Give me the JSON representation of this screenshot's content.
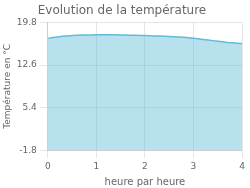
{
  "chart_data": {
    "type": "area",
    "title": "Evolution de la température",
    "xlabel": "heure par heure",
    "ylabel": "Température en °C",
    "x": [
      0.0,
      0.1,
      0.2,
      0.3,
      0.4,
      0.5,
      0.6,
      0.7,
      0.8,
      0.9,
      1.0,
      1.1,
      1.2,
      1.3,
      1.4,
      1.5,
      1.6,
      1.7,
      1.8,
      1.9,
      2.0,
      2.1,
      2.2,
      2.3,
      2.4,
      2.5,
      2.6,
      2.7,
      2.8,
      2.9,
      3.0,
      3.1,
      3.2,
      3.3,
      3.4,
      3.5,
      3.6,
      3.7,
      3.8,
      3.9,
      4.0
    ],
    "values": [
      17.1,
      17.25,
      17.35,
      17.45,
      17.52,
      17.57,
      17.62,
      17.65,
      17.67,
      17.68,
      17.7,
      17.72,
      17.73,
      17.72,
      17.7,
      17.68,
      17.66,
      17.64,
      17.62,
      17.6,
      17.58,
      17.55,
      17.52,
      17.49,
      17.46,
      17.42,
      17.38,
      17.33,
      17.27,
      17.2,
      17.12,
      17.02,
      16.92,
      16.82,
      16.72,
      16.62,
      16.52,
      16.42,
      16.35,
      16.28,
      16.22
    ],
    "color": "#60bcd8",
    "xlim": [
      0,
      4
    ],
    "xticks": [
      0,
      1,
      2,
      3,
      4
    ],
    "ylim": [
      -1.8,
      19.8
    ],
    "yticks": [
      -1.8,
      5.4,
      12.6,
      19.8
    ],
    "grid": true
  }
}
